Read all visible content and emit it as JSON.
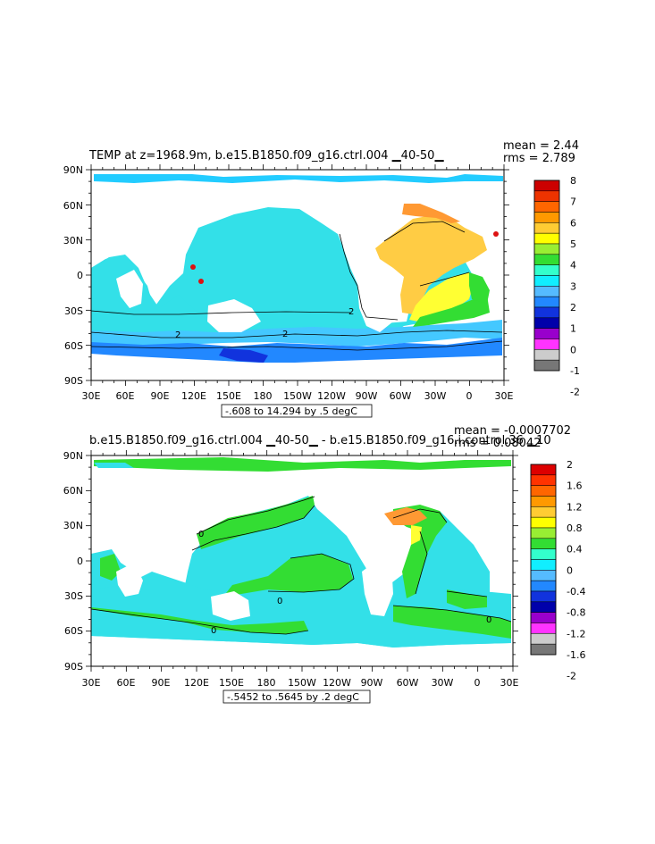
{
  "top": {
    "title": "TEMP at z=1968.9m, b.e15.B1850.f09_g16.ctrl.004 ▁40-50▁",
    "mean": "mean = 2.44",
    "rms": "rms = 2.789",
    "lat_labels": [
      "90N",
      "60N",
      "30N",
      "0",
      "30S",
      "60S",
      "90S"
    ],
    "lon_labels": [
      "30E",
      "60E",
      "90E",
      "120E",
      "150E",
      "180",
      "150W",
      "120W",
      "90W",
      "60W",
      "30W",
      "0",
      "30E"
    ],
    "range_note": "-.608 to 14.294 by .5 degC",
    "colorbar_labels": [
      "8",
      "7",
      "6",
      "5",
      "4",
      "3",
      "2",
      "1",
      "0",
      "-1",
      "-2"
    ],
    "colorbar_colors": [
      "#cc0000",
      "#ee3300",
      "#ff6600",
      "#ff9900",
      "#ffcc33",
      "#ffff00",
      "#99ee33",
      "#33dd33",
      "#33ffcc",
      "#11eeff",
      "#55bbff",
      "#2288ff",
      "#1133dd",
      "#0000aa",
      "#9900cc",
      "#ff33ff",
      "#cccccc",
      "#777777"
    ],
    "contour_labels": [
      "2",
      "2",
      "2"
    ]
  },
  "bottom": {
    "title": "b.e15.B1850.f09_g16.ctrl.004 ▁40-50▁ - b.e15.B1850.f09_g16.i.control.36 ▁10",
    "mean": "mean = -0.0007702",
    "rms": "rms = 0.08042",
    "lat_labels": [
      "90N",
      "60N",
      "30N",
      "0",
      "30S",
      "60S",
      "90S"
    ],
    "lon_labels": [
      "30E",
      "60E",
      "90E",
      "120E",
      "150E",
      "180",
      "150W",
      "120W",
      "90W",
      "60W",
      "30W",
      "0",
      "30E"
    ],
    "range_note": "-.5452 to .5645 by .2 degC",
    "colorbar_labels": [
      "2",
      "1.6",
      "1.2",
      "0.8",
      "0.4",
      "0",
      "-0.4",
      "-0.8",
      "-1.2",
      "-1.6",
      "-2"
    ],
    "colorbar_colors": [
      "#dd0000",
      "#ff3300",
      "#ff6600",
      "#ff9900",
      "#ffcc33",
      "#ffff00",
      "#99ee33",
      "#33dd33",
      "#33ffcc",
      "#11eeff",
      "#55bbff",
      "#2288ff",
      "#1133dd",
      "#0000aa",
      "#9900cc",
      "#ff33ff",
      "#cccccc",
      "#777777"
    ],
    "contour_labels": [
      "0",
      "0",
      "0",
      "0"
    ]
  },
  "colors": {
    "teal": "#33e0e8",
    "lightblue": "#33bbff",
    "blue": "#2288ff",
    "darkblue": "#1133dd",
    "green": "#33dd33",
    "yellow": "#ffff33",
    "gold": "#ffcc33",
    "orange": "#ff9933",
    "red": "#dd1111"
  }
}
